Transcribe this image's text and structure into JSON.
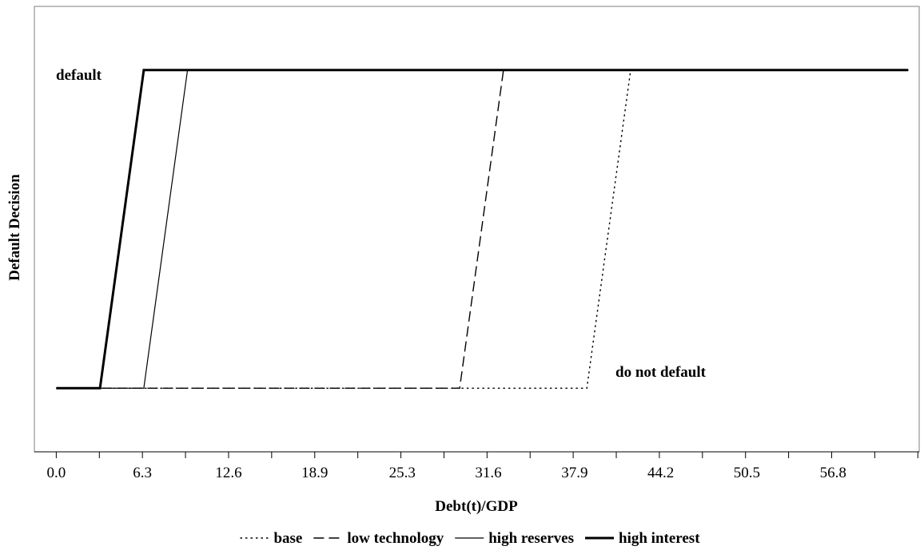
{
  "chart_data": {
    "type": "line",
    "xlabel": "Debt(t)/GDP",
    "ylabel": "Default Decision",
    "x_tick_labels": [
      "0.0",
      "6.3",
      "12.6",
      "18.9",
      "25.3",
      "31.6",
      "37.9",
      "44.2",
      "50.5",
      "56.8"
    ],
    "xlim": [
      -1.6,
      63.1
    ],
    "ylim": [
      -0.2,
      1.2
    ],
    "y_levels": [
      {
        "value": 1,
        "label": "default"
      },
      {
        "value": 0,
        "label": "do not default"
      }
    ],
    "legend_position": "bottom",
    "series": [
      {
        "name": "base",
        "style": "dotted",
        "width": 1.4,
        "points": [
          [
            0.0,
            0
          ],
          [
            38.8,
            0
          ],
          [
            42.0,
            1
          ],
          [
            62.3,
            1
          ]
        ]
      },
      {
        "name": "low technology",
        "style": "dashed",
        "width": 1.4,
        "points": [
          [
            0.0,
            0
          ],
          [
            29.5,
            0
          ],
          [
            32.7,
            1
          ],
          [
            62.3,
            1
          ]
        ]
      },
      {
        "name": "high reserves",
        "style": "solid",
        "width": 1.2,
        "points": [
          [
            0.0,
            0
          ],
          [
            6.4,
            0
          ],
          [
            9.6,
            1
          ],
          [
            62.3,
            1
          ]
        ]
      },
      {
        "name": "high interest",
        "style": "solid",
        "width": 3,
        "points": [
          [
            0.0,
            0
          ],
          [
            3.2,
            0
          ],
          [
            6.4,
            1
          ],
          [
            62.3,
            1
          ]
        ]
      }
    ]
  }
}
